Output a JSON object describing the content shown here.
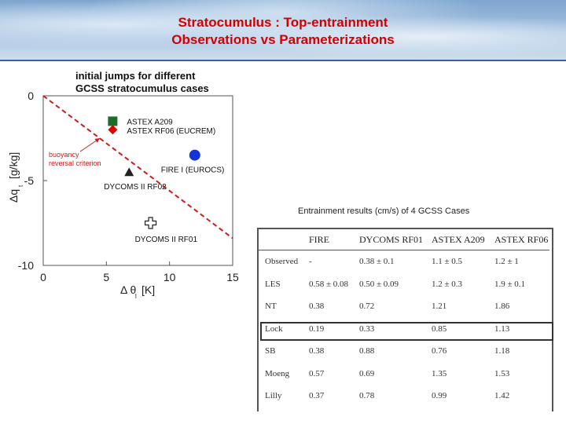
{
  "slide": {
    "title_line1": "Stratocumulus : Top-entrainment",
    "title_line2": "Observations vs Parameterizations"
  },
  "chart_data": {
    "type": "scatter",
    "title_line1": "initial jumps for different",
    "title_line2": "GCSS stratocumulus cases",
    "xlabel": "Δ θ",
    "xlabel_sub": "l",
    "xlabel_unit": "[K]",
    "ylabel": "Δq",
    "ylabel_sub": "t",
    "ylabel_unit": "[g/kg]",
    "xlim": [
      0,
      15
    ],
    "ylim": [
      -10,
      0
    ],
    "x_ticks": [
      "0",
      "5",
      "10",
      "15"
    ],
    "y_ticks": [
      "0",
      "-5",
      "-10"
    ],
    "x_tick_values": [
      0,
      5,
      10,
      15
    ],
    "y_tick_values": [
      0,
      -5,
      -10
    ],
    "points": [
      {
        "label": "ASTEX A209",
        "x": 5.5,
        "y": -1.5,
        "marker": "square",
        "color": "#1e6b2a"
      },
      {
        "label": "ASTEX RF06 (EUCREM)",
        "x": 5.5,
        "y": -2.0,
        "marker": "diamond",
        "color": "#e00000"
      },
      {
        "label": "FIRE I (EUROCS)",
        "x": 12.0,
        "y": -3.5,
        "marker": "circle",
        "color": "#1434d6"
      },
      {
        "label": "DYCOMS II RF02",
        "x": 6.8,
        "y": -4.5,
        "marker": "triangle",
        "color": "#222222"
      },
      {
        "label": "DYCOMS II RF01",
        "x": 8.5,
        "y": -7.5,
        "marker": "cross",
        "color": "#222222"
      }
    ],
    "reference_line": {
      "label_line1": "buoyancy",
      "label_line2": "reversal criterion",
      "x": [
        0,
        15
      ],
      "y": [
        0,
        -8.4
      ],
      "color": "#cc1c1c"
    }
  },
  "table": {
    "caption": "Entrainment results (cm/s) of 4 GCSS Cases",
    "headers": [
      "",
      "FIRE",
      "DYCOMS RF01",
      "ASTEX A209",
      "ASTEX RF06"
    ],
    "rows": [
      [
        "Observed",
        "-",
        "0.38 ± 0.1",
        "1.1 ± 0.5",
        "1.2 ± 1"
      ],
      [
        "LES",
        "0.58 ± 0.08",
        "0.50 ± 0.09",
        "1.2 ± 0.3",
        "1.9 ± 0.1"
      ],
      [
        "NT",
        "0.38",
        "0.72",
        "1.21",
        "1.86"
      ],
      [
        "Lock",
        "0.19",
        "0.33",
        "0.85",
        "1.13"
      ],
      [
        "SB",
        "0.38",
        "0.88",
        "0.76",
        "1.18"
      ],
      [
        "Moeng",
        "0.57",
        "0.69",
        "1.35",
        "1.53"
      ],
      [
        "Lilly",
        "0.37",
        "0.78",
        "0.99",
        "1.42"
      ]
    ],
    "highlighted_row": "Lock"
  }
}
